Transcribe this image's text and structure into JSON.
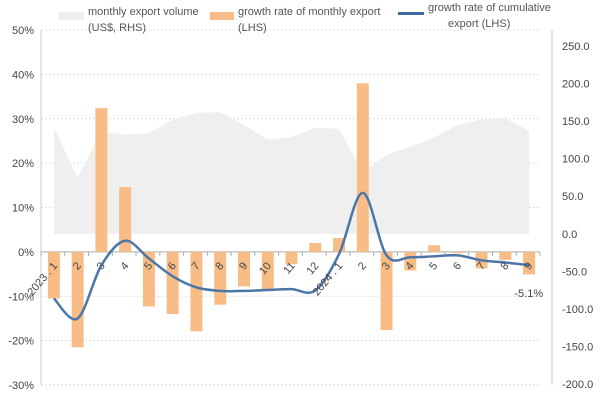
{
  "chart_data": {
    "type": "bar+line+area",
    "legend": [
      {
        "label": "monthly export volume",
        "label2": "(US$, RHS)",
        "type": "area",
        "color": "#eeeeee"
      },
      {
        "label": "growth rate of monthly export",
        "label2": "(LHS)",
        "type": "bar",
        "color": "#f8bd86"
      },
      {
        "label": "growth rate of cumulative",
        "label2": "export (LHS)",
        "type": "line",
        "color": "#4a76a8"
      }
    ],
    "legend_placement": "top",
    "categories": [
      "2023 . 1",
      "2",
      "3",
      "4",
      "5",
      "6",
      "7",
      "8",
      "9",
      "10",
      "11",
      "12",
      "2024 . 1",
      "2",
      "3",
      "4",
      "5",
      "6",
      "7",
      "8",
      "9"
    ],
    "left_axis": {
      "ticks": [
        "50%",
        "40%",
        "30%",
        "20%",
        "10%",
        "0%",
        "-10%",
        "-20%",
        "-30%"
      ],
      "ylim": [
        -30,
        50
      ]
    },
    "right_axis": {
      "ticks": [
        "250.0",
        "200.0",
        "150.0",
        "100.0",
        "50.0",
        "0.0",
        "-50.0",
        "-100.0",
        "-150.0",
        "-200.0"
      ],
      "ylim": [
        -200,
        250
      ]
    },
    "grid": true,
    "series": [
      {
        "name": "monthly export volume (US$, RHS)",
        "axis": "right",
        "type": "area",
        "values": [
          141,
          75,
          136,
          132,
          134,
          152,
          161,
          162,
          145,
          125,
          129,
          141,
          140,
          82,
          105,
          116,
          128,
          145,
          152,
          154,
          137
        ]
      },
      {
        "name": "growth rate of monthly export (LHS)",
        "axis": "left",
        "type": "bar",
        "values": [
          -10.5,
          -21.5,
          32.4,
          14.6,
          -12.3,
          -14.0,
          -17.9,
          -11.9,
          -7.8,
          -8.6,
          -2.8,
          2.0,
          3.1,
          38.0,
          -17.6,
          -4.2,
          1.5,
          -0.3,
          -3.7,
          -1.8,
          -5.1
        ]
      },
      {
        "name": "growth rate of cumulative export (LHS)",
        "axis": "left",
        "type": "line",
        "values": [
          -10.5,
          -15.0,
          -3.0,
          2.5,
          -1.5,
          -5.5,
          -8.0,
          -8.8,
          -8.8,
          -8.6,
          -8.4,
          -8.7,
          -0.5,
          13.3,
          -0.8,
          -1.2,
          -1.0,
          -0.8,
          -1.9,
          -2.4,
          -3.0
        ]
      }
    ],
    "annotations": [
      {
        "text": "-5.1%",
        "category": "9"
      }
    ]
  }
}
